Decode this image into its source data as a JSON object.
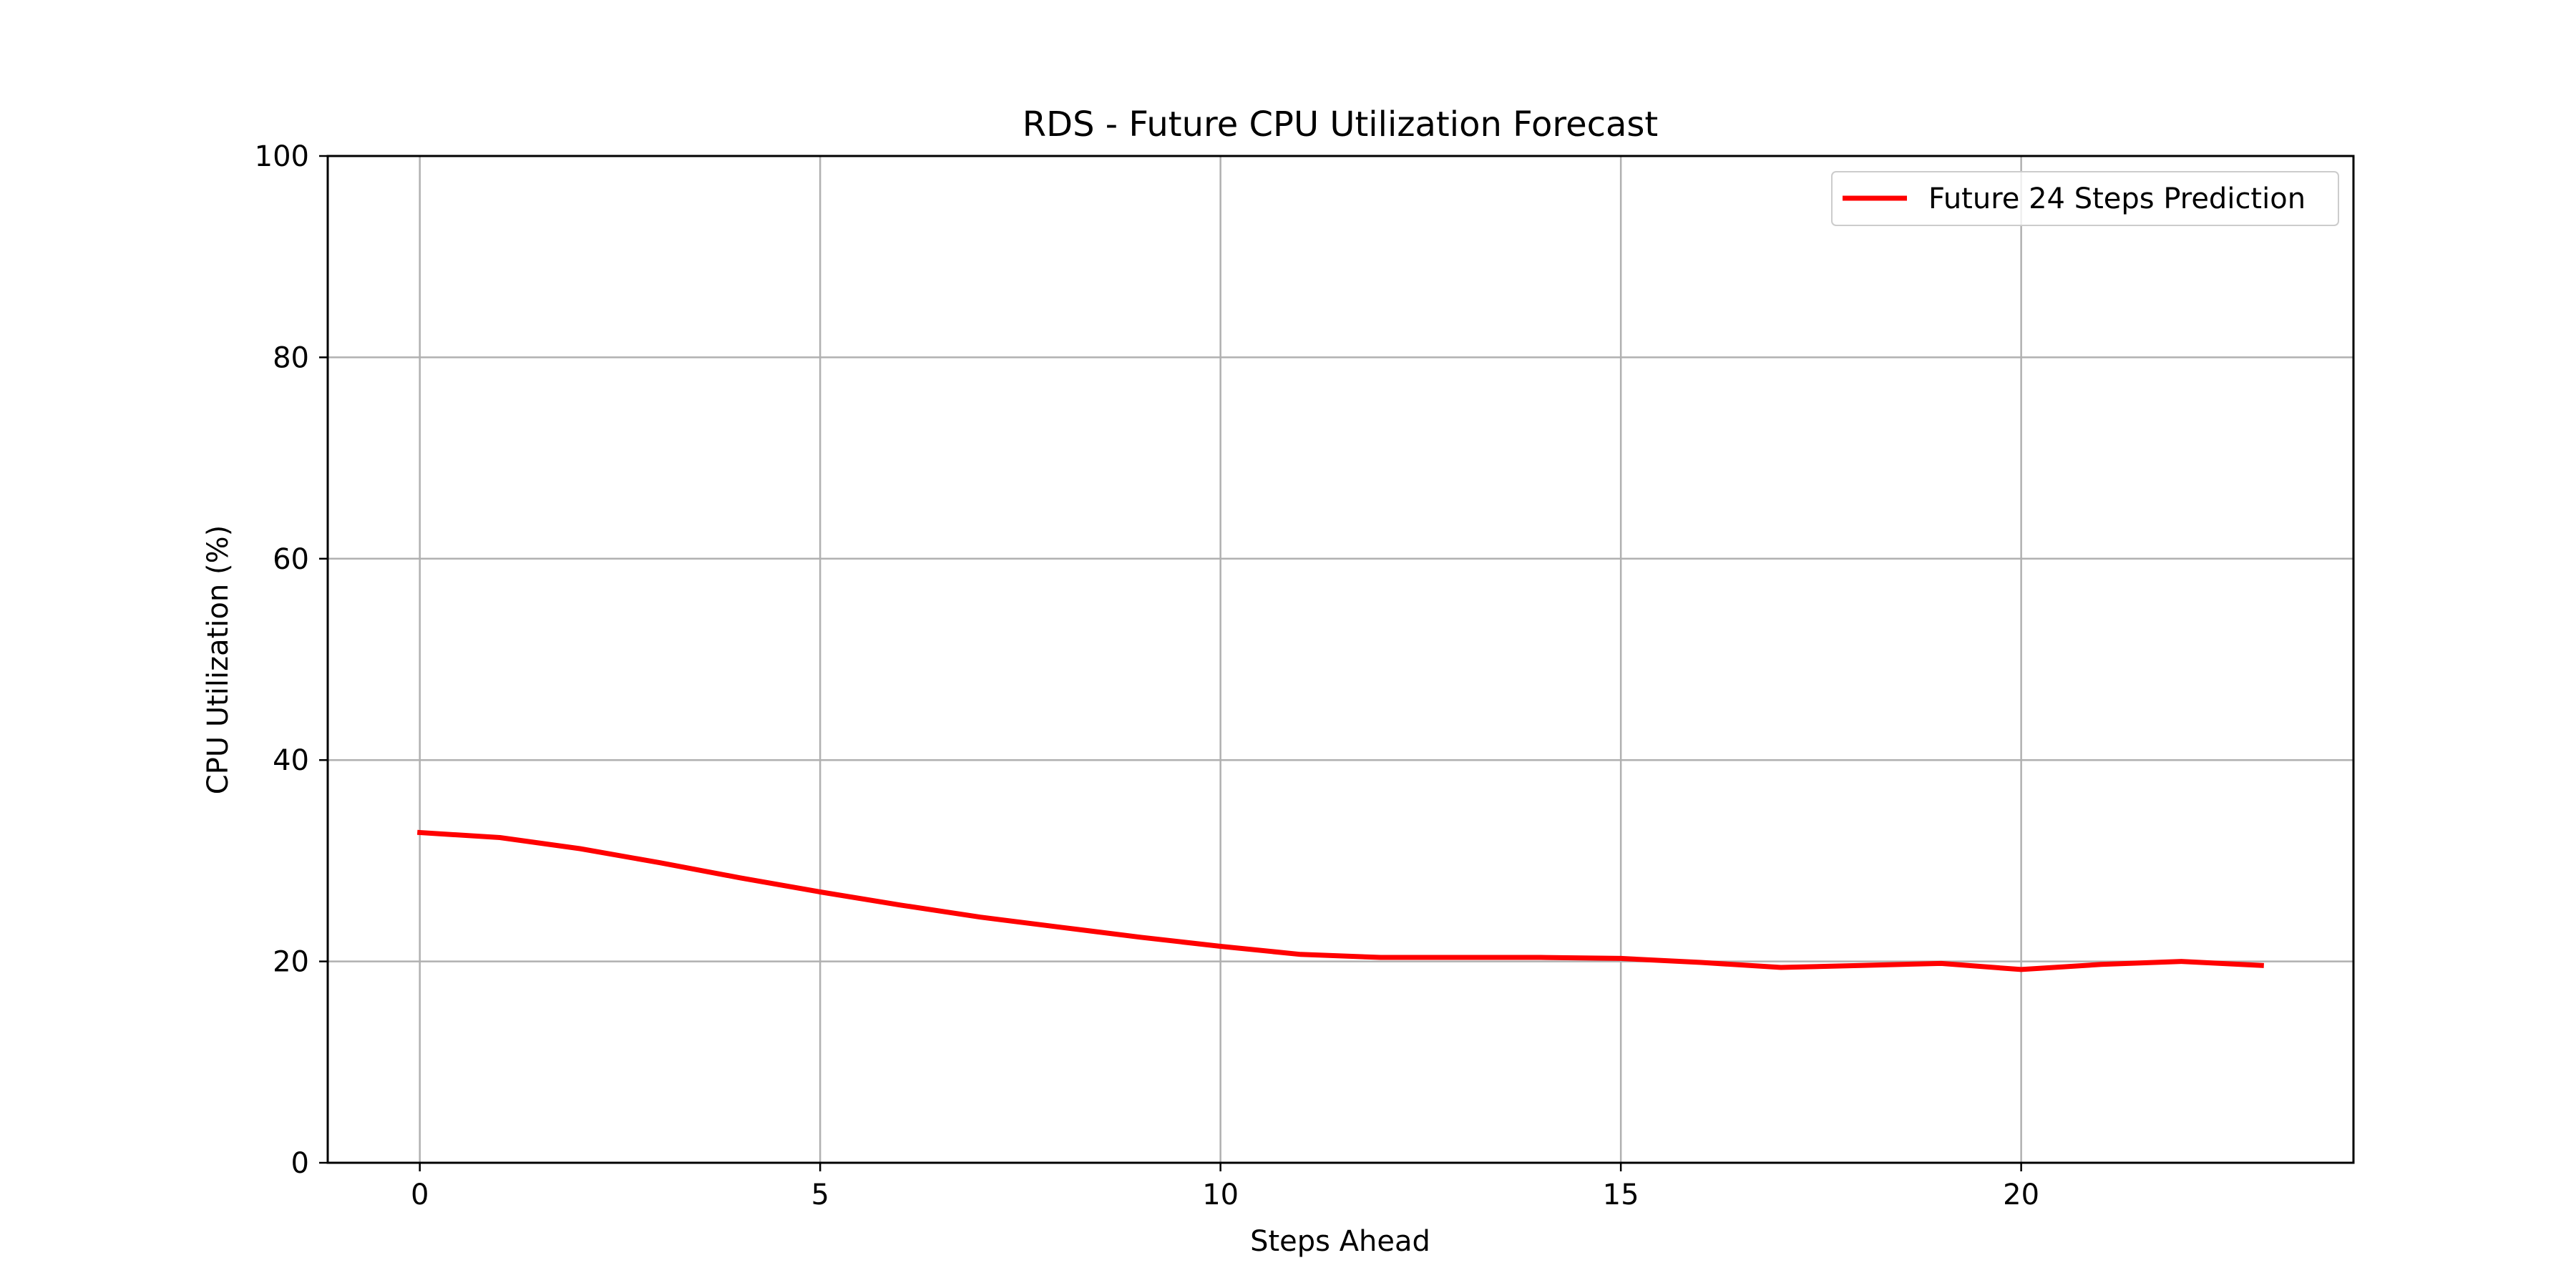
{
  "chart_data": {
    "type": "line",
    "title": "RDS - Future CPU Utilization Forecast",
    "xlabel": "Steps Ahead",
    "ylabel": "CPU Utilization (%)",
    "xlim": [
      -1.15,
      24.15
    ],
    "ylim": [
      0,
      100
    ],
    "xticks": [
      0,
      5,
      10,
      15,
      20
    ],
    "yticks": [
      0,
      20,
      40,
      60,
      80,
      100
    ],
    "grid": true,
    "legend_position": "top-right",
    "series": [
      {
        "name": "Future 24 Steps Prediction",
        "color": "#ff0000",
        "x": [
          0,
          1,
          2,
          3,
          4,
          5,
          6,
          7,
          8,
          9,
          10,
          11,
          12,
          13,
          14,
          15,
          16,
          17,
          18,
          19,
          20,
          21,
          22,
          23
        ],
        "y": [
          32.8,
          32.3,
          31.2,
          29.8,
          28.3,
          26.9,
          25.6,
          24.4,
          23.4,
          22.4,
          21.5,
          20.7,
          20.4,
          20.4,
          20.4,
          20.3,
          19.9,
          19.4,
          19.6,
          19.8,
          19.2,
          19.7,
          20.0,
          19.6
        ]
      }
    ]
  }
}
